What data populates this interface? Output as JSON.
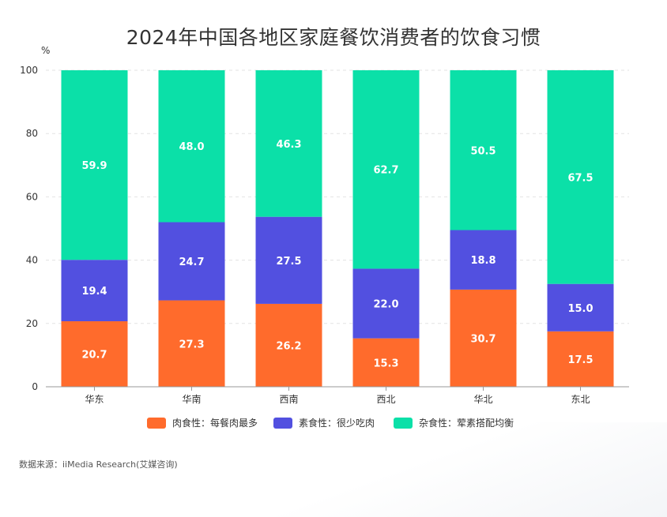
{
  "title": "2024年中国各地区家庭餐饮消费者的饮食习惯",
  "source_text": "数据来源：iiMedia Research(艾媒咨询)",
  "colors": {
    "meat": "#FF6B2C",
    "veg": "#5250E0",
    "mixed": "#0BE0A8"
  },
  "chart_data": {
    "type": "bar",
    "stacked": true,
    "title": "2024年中国各地区家庭餐饮消费者的饮食习惯",
    "ylabel": "%",
    "ylim": [
      0,
      100
    ],
    "yticks": [
      0,
      20,
      40,
      60,
      80,
      100
    ],
    "grid": true,
    "legend_position": "bottom",
    "categories": [
      "华东",
      "华南",
      "西南",
      "西北",
      "华北",
      "东北"
    ],
    "series": [
      {
        "name": "肉食性：每餐肉最多",
        "values": [
          20.7,
          27.3,
          26.2,
          15.3,
          30.7,
          17.5
        ],
        "color": "#FF6B2C"
      },
      {
        "name": "素食性：很少吃肉",
        "values": [
          19.4,
          24.7,
          27.5,
          22.0,
          18.8,
          15.0
        ],
        "color": "#5250E0"
      },
      {
        "name": "杂食性：荤素搭配均衡",
        "values": [
          59.9,
          48.0,
          46.3,
          62.7,
          50.5,
          67.5
        ],
        "color": "#0BE0A8"
      }
    ]
  }
}
